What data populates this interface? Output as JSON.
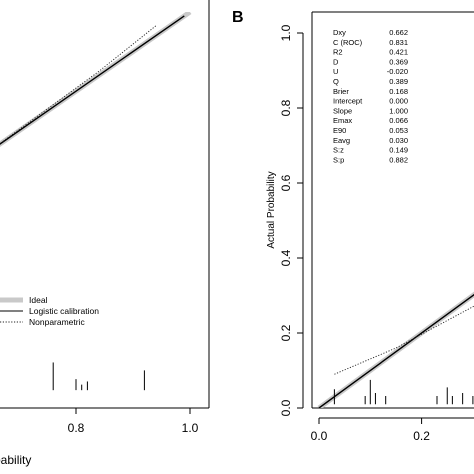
{
  "figure": {
    "panels": [
      {
        "panel_label": "",
        "xlabel": "bability",
        "x_ticks": [
          "0.6",
          "0.8",
          "1.0"
        ],
        "legend": [
          {
            "label": "Ideal",
            "style": "ideal"
          },
          {
            "label": "Logistic calibration",
            "style": "solid"
          },
          {
            "label": "Nonparametric",
            "style": "dotted"
          }
        ]
      },
      {
        "panel_label": "B",
        "ylabel": "Actual Probability",
        "y_ticks": [
          "0.0",
          "0.2",
          "0.4",
          "0.6",
          "0.8",
          "1.0"
        ],
        "x_ticks": [
          "0.0",
          "0.2"
        ],
        "stats": [
          {
            "name": "Dxy",
            "value": "0.662"
          },
          {
            "name": "C (ROC)",
            "value": "0.831"
          },
          {
            "name": "R2",
            "value": "0.421"
          },
          {
            "name": "D",
            "value": "0.369"
          },
          {
            "name": "U",
            "value": "-0.020"
          },
          {
            "name": "Q",
            "value": "0.389"
          },
          {
            "name": "Brier",
            "value": "0.168"
          },
          {
            "name": "Intercept",
            "value": "0.000"
          },
          {
            "name": "Slope",
            "value": "1.000"
          },
          {
            "name": "Emax",
            "value": "0.066"
          },
          {
            "name": "E90",
            "value": "0.053"
          },
          {
            "name": "Eavg",
            "value": "0.030"
          },
          {
            "name": "S:z",
            "value": "0.149"
          },
          {
            "name": "S:p",
            "value": "0.882"
          }
        ]
      }
    ]
  },
  "chart_data": [
    {
      "type": "line",
      "panel": "A",
      "xlim": [
        0.0,
        1.0
      ],
      "ylim": [
        0.0,
        1.0
      ],
      "series": [
        {
          "name": "Ideal",
          "x": [
            0.5,
            1.0
          ],
          "y": [
            0.5,
            1.0
          ]
        },
        {
          "name": "Logistic calibration",
          "x": [
            0.5,
            0.99
          ],
          "y": [
            0.5,
            0.99
          ]
        },
        {
          "name": "Nonparametric",
          "x": [
            0.5,
            0.56,
            0.64,
            0.74,
            0.84,
            0.94
          ],
          "y": [
            0.465,
            0.56,
            0.64,
            0.745,
            0.85,
            0.965
          ]
        }
      ],
      "rug_ticks": [
        {
          "x": 0.51,
          "h": 0.012
        },
        {
          "x": 0.53,
          "h": 0.012
        },
        {
          "x": 0.55,
          "h": 0.014
        },
        {
          "x": 0.58,
          "h": 0.014
        },
        {
          "x": 0.6,
          "h": 0.018
        },
        {
          "x": 0.62,
          "h": 0.014
        },
        {
          "x": 0.64,
          "h": 0.045
        },
        {
          "x": 0.65,
          "h": 0.028
        },
        {
          "x": 0.76,
          "h": 0.07
        },
        {
          "x": 0.8,
          "h": 0.028
        },
        {
          "x": 0.81,
          "h": 0.014
        },
        {
          "x": 0.82,
          "h": 0.022
        },
        {
          "x": 0.92,
          "h": 0.05
        }
      ]
    },
    {
      "type": "line",
      "panel": "B",
      "xlim": [
        0.0,
        0.5
      ],
      "ylim": [
        0.0,
        1.0
      ],
      "series": [
        {
          "name": "Ideal",
          "x": [
            0.0,
            0.5
          ],
          "y": [
            0.0,
            0.5
          ]
        },
        {
          "name": "Logistic calibration",
          "x": [
            0.0,
            0.5
          ],
          "y": [
            0.0,
            0.5
          ]
        },
        {
          "name": "Nonparametric",
          "x": [
            0.03,
            0.15,
            0.3,
            0.5
          ],
          "y": [
            0.09,
            0.16,
            0.27,
            0.42
          ]
        }
      ],
      "rug_ticks": [
        {
          "x": 0.03,
          "h": 0.04
        },
        {
          "x": 0.09,
          "h": 0.022
        },
        {
          "x": 0.1,
          "h": 0.065
        },
        {
          "x": 0.11,
          "h": 0.03
        },
        {
          "x": 0.13,
          "h": 0.022
        },
        {
          "x": 0.23,
          "h": 0.022
        },
        {
          "x": 0.25,
          "h": 0.045
        },
        {
          "x": 0.26,
          "h": 0.022
        },
        {
          "x": 0.28,
          "h": 0.03
        },
        {
          "x": 0.3,
          "h": 0.022
        }
      ]
    }
  ]
}
